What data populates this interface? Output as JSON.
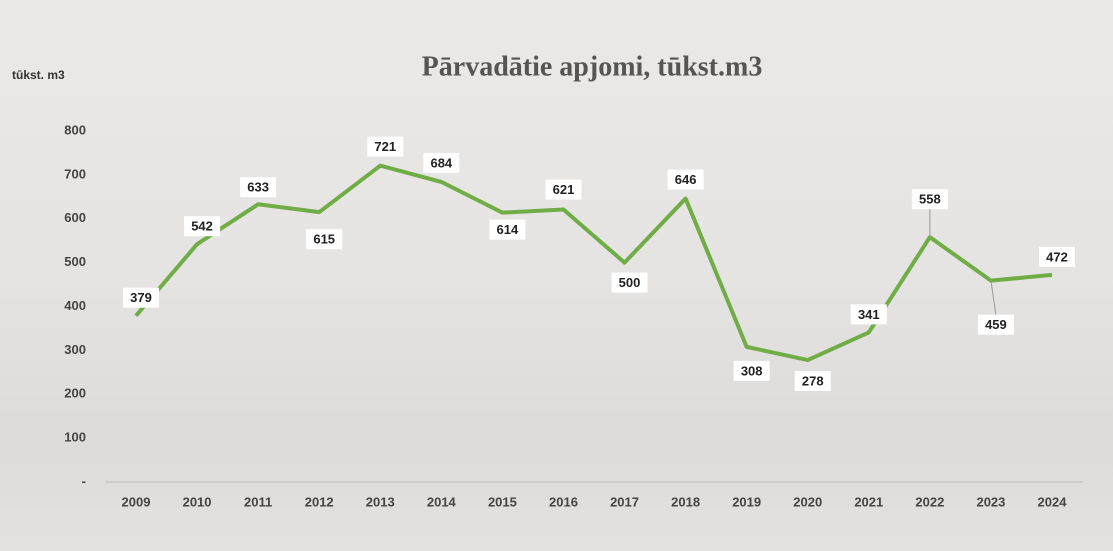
{
  "chart_data": {
    "type": "line",
    "title": "Pārvadātie apjomi, tūkst.m3",
    "y_axis_label": "tūkst. m3",
    "categories": [
      "2009",
      "2010",
      "2011",
      "2012",
      "2013",
      "2014",
      "2015",
      "2016",
      "2017",
      "2018",
      "2019",
      "2020",
      "2021",
      "2022",
      "2023",
      "2024"
    ],
    "series": [
      {
        "name": "Pārvadātie apjomi",
        "color": "#70ad47",
        "values": [
          379,
          542,
          633,
          615,
          721,
          684,
          614,
          621,
          500,
          646,
          308,
          278,
          341,
          558,
          459,
          472
        ]
      }
    ],
    "ylim": [
      0,
      800
    ],
    "yticks": [
      {
        "value": 0,
        "label": "-"
      },
      100,
      200,
      300,
      400,
      500,
      600,
      700,
      800
    ]
  }
}
